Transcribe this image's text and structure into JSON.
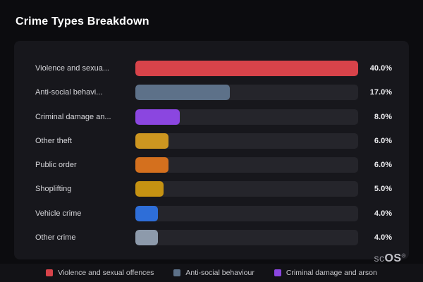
{
  "page_title": "Crime Types Breakdown",
  "colors": {
    "background": "#0c0c0f",
    "card": "#17171c",
    "track": "#25252b",
    "title_text": "#ffffff",
    "label_text": "#d6d6da",
    "value_text": "#ececef"
  },
  "chart_data": {
    "type": "bar",
    "orientation": "horizontal",
    "title": "Crime Types Breakdown",
    "categories": [
      "Violence and sexua...",
      "Anti-social behavi...",
      "Criminal damage an...",
      "Other theft",
      "Public order",
      "Shoplifting",
      "Vehicle crime",
      "Other crime"
    ],
    "values": [
      40.0,
      17.0,
      8.0,
      6.0,
      6.0,
      5.0,
      4.0,
      4.0
    ],
    "value_labels": [
      "40.0%",
      "17.0%",
      "8.0%",
      "6.0%",
      "6.0%",
      "5.0%",
      "4.0%",
      "4.0%"
    ],
    "bar_colors": [
      "#d8434a",
      "#5d7189",
      "#8b46e0",
      "#cd9620",
      "#d4701e",
      "#c59212",
      "#2e6ed8",
      "#8d9aab"
    ],
    "xlim": [
      0,
      40
    ],
    "grid": false,
    "legend_position": "bottom",
    "legend": [
      {
        "label": "Violence and sexual offences",
        "color": "#d8434a"
      },
      {
        "label": "Anti-social behaviour",
        "color": "#5d7189"
      },
      {
        "label": "Criminal damage and arson",
        "color": "#8b46e0"
      }
    ]
  },
  "watermark": {
    "prefix": "sc",
    "main": "OS",
    "reg": "®"
  }
}
